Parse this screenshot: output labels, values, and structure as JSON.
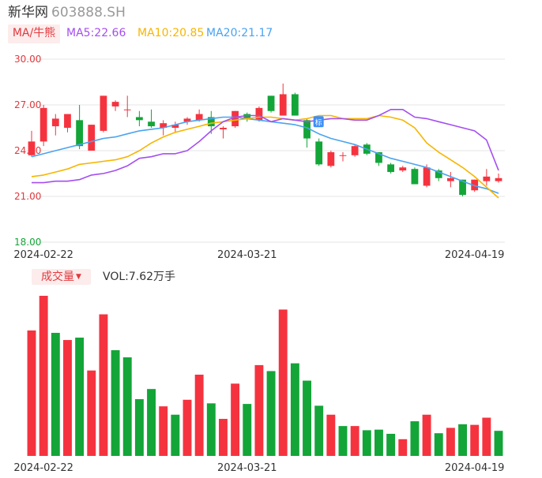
{
  "header": {
    "name": "新华网",
    "code": "603888.SH"
  },
  "ma_legend": {
    "toggle_label": "MA/牛熊",
    "ma5": "MA5:22.66",
    "ma10": "MA10:20.85",
    "ma20": "MA20:21.17"
  },
  "volume_legend": {
    "toggle_label": "成交量",
    "vol": "VOL:7.62万手"
  },
  "colors": {
    "up": "#f5333f",
    "down": "#13a538",
    "ma5": "#a44ef0",
    "ma10": "#f7b500",
    "ma20": "#4aa3f0",
    "grid": "#e6e6e6"
  },
  "chart_data": [
    {
      "type": "candlestick",
      "y_ticks": [
        "30.00",
        "27.00",
        "24.00",
        "21.00",
        "18.00"
      ],
      "ylim": [
        18.0,
        30.0
      ],
      "x_ticks": [
        {
          "label": "2024-02-22",
          "index": 1
        },
        {
          "label": "2024-03-21",
          "index": 18
        },
        {
          "label": "2024-04-19",
          "index": 37
        }
      ],
      "badge": "标",
      "candles": [
        {
          "o": 23.7,
          "h": 25.3,
          "l": 23.6,
          "c": 24.6
        },
        {
          "o": 24.6,
          "h": 27.0,
          "l": 24.3,
          "c": 26.8
        },
        {
          "o": 25.6,
          "h": 26.4,
          "l": 25.0,
          "c": 26.1
        },
        {
          "o": 25.5,
          "h": 26.4,
          "l": 25.2,
          "c": 26.4
        },
        {
          "o": 26.0,
          "h": 27.0,
          "l": 24.1,
          "c": 24.3
        },
        {
          "o": 24.0,
          "h": 25.7,
          "l": 24.0,
          "c": 25.7
        },
        {
          "o": 25.3,
          "h": 27.6,
          "l": 25.2,
          "c": 27.6
        },
        {
          "o": 26.9,
          "h": 27.3,
          "l": 26.6,
          "c": 27.2
        },
        {
          "o": 26.7,
          "h": 27.6,
          "l": 26.2,
          "c": 26.7
        },
        {
          "o": 26.2,
          "h": 26.6,
          "l": 25.6,
          "c": 26.0
        },
        {
          "o": 25.9,
          "h": 26.7,
          "l": 25.5,
          "c": 25.6
        },
        {
          "o": 25.5,
          "h": 26.0,
          "l": 25.0,
          "c": 25.8
        },
        {
          "o": 25.5,
          "h": 25.9,
          "l": 25.2,
          "c": 25.7
        },
        {
          "o": 25.9,
          "h": 26.2,
          "l": 25.7,
          "c": 26.1
        },
        {
          "o": 26.0,
          "h": 26.7,
          "l": 25.9,
          "c": 26.4
        },
        {
          "o": 26.2,
          "h": 26.6,
          "l": 25.1,
          "c": 25.6
        },
        {
          "o": 25.4,
          "h": 25.6,
          "l": 24.8,
          "c": 25.5
        },
        {
          "o": 25.6,
          "h": 26.6,
          "l": 25.5,
          "c": 26.6
        },
        {
          "o": 26.4,
          "h": 26.5,
          "l": 25.9,
          "c": 26.1
        },
        {
          "o": 26.0,
          "h": 26.9,
          "l": 25.9,
          "c": 26.8
        },
        {
          "o": 27.6,
          "h": 27.6,
          "l": 26.5,
          "c": 26.6
        },
        {
          "o": 26.3,
          "h": 28.4,
          "l": 26.3,
          "c": 27.7
        },
        {
          "o": 27.7,
          "h": 27.8,
          "l": 26.3,
          "c": 26.3
        },
        {
          "o": 26.0,
          "h": 26.1,
          "l": 24.2,
          "c": 24.8
        },
        {
          "o": 24.6,
          "h": 24.8,
          "l": 23.0,
          "c": 23.1
        },
        {
          "o": 23.0,
          "h": 24.0,
          "l": 22.9,
          "c": 23.9
        },
        {
          "o": 23.7,
          "h": 23.9,
          "l": 23.3,
          "c": 23.7
        },
        {
          "o": 23.7,
          "h": 24.4,
          "l": 23.6,
          "c": 24.3
        },
        {
          "o": 24.4,
          "h": 24.5,
          "l": 23.7,
          "c": 23.8
        },
        {
          "o": 23.9,
          "h": 23.9,
          "l": 23.0,
          "c": 23.2
        },
        {
          "o": 23.1,
          "h": 23.2,
          "l": 22.5,
          "c": 22.6
        },
        {
          "o": 22.7,
          "h": 23.0,
          "l": 22.6,
          "c": 22.9
        },
        {
          "o": 22.8,
          "h": 22.9,
          "l": 21.8,
          "c": 21.8
        },
        {
          "o": 21.7,
          "h": 23.1,
          "l": 21.6,
          "c": 22.9
        },
        {
          "o": 22.7,
          "h": 22.8,
          "l": 22.0,
          "c": 22.2
        },
        {
          "o": 22.0,
          "h": 22.6,
          "l": 21.6,
          "c": 22.2
        },
        {
          "o": 22.1,
          "h": 22.1,
          "l": 21.0,
          "c": 21.1
        },
        {
          "o": 21.4,
          "h": 22.1,
          "l": 21.3,
          "c": 22.1
        },
        {
          "o": 22.0,
          "h": 22.8,
          "l": 21.7,
          "c": 22.3
        },
        {
          "o": 22.0,
          "h": 22.5,
          "l": 21.9,
          "c": 22.2
        }
      ],
      "ma5": [
        21.9,
        21.9,
        22.0,
        22.0,
        22.1,
        22.4,
        22.5,
        22.7,
        23.0,
        23.5,
        23.6,
        23.8,
        23.8,
        24.0,
        24.6,
        25.3,
        25.9,
        26.2,
        26.3,
        26.3,
        25.9,
        26.1,
        26.0,
        25.9,
        26.0,
        26.1,
        26.1,
        26.0,
        26.0,
        26.3,
        26.7,
        26.7,
        26.2,
        26.1,
        25.9,
        25.7,
        25.5,
        25.3,
        24.7,
        22.7
      ],
      "ma10": [
        22.3,
        22.4,
        22.6,
        22.8,
        23.1,
        23.2,
        23.3,
        23.4,
        23.6,
        24.0,
        24.5,
        24.9,
        25.2,
        25.4,
        25.6,
        25.8,
        25.9,
        26.0,
        26.1,
        26.2,
        26.2,
        26.1,
        26.0,
        26.1,
        26.3,
        26.3,
        26.1,
        26.1,
        26.1,
        26.3,
        26.2,
        26.0,
        25.5,
        24.5,
        23.9,
        23.4,
        22.9,
        22.3,
        21.6,
        20.9
      ],
      "ma20": [
        23.6,
        23.8,
        24.0,
        24.2,
        24.4,
        24.6,
        24.8,
        24.9,
        25.1,
        25.3,
        25.4,
        25.5,
        25.7,
        25.9,
        26.0,
        26.1,
        26.2,
        26.2,
        26.1,
        26.0,
        25.9,
        25.8,
        25.7,
        25.5,
        25.1,
        24.8,
        24.6,
        24.4,
        24.1,
        23.8,
        23.5,
        23.3,
        23.1,
        22.9,
        22.6,
        22.3,
        22.0,
        21.7,
        21.5,
        21.2
      ]
    },
    {
      "type": "bar",
      "title": "成交量",
      "values": [
        21.0,
        26.8,
        20.6,
        19.4,
        19.8,
        14.3,
        23.7,
        17.7,
        16.5,
        9.5,
        11.2,
        8.3,
        6.9,
        9.4,
        13.6,
        8.8,
        6.2,
        12.1,
        8.7,
        15.2,
        14.2,
        24.5,
        15.5,
        12.6,
        8.4,
        6.9,
        5.0,
        5.0,
        4.3,
        4.4,
        3.7,
        2.8,
        5.8,
        6.9,
        3.8,
        4.7,
        5.3,
        5.2,
        6.4,
        4.2
      ],
      "up": [
        true,
        true,
        false,
        true,
        false,
        true,
        true,
        false,
        false,
        false,
        false,
        true,
        false,
        true,
        true,
        false,
        true,
        true,
        false,
        true,
        false,
        true,
        false,
        false,
        false,
        true,
        false,
        true,
        false,
        false,
        false,
        true,
        false,
        true,
        false,
        true,
        false,
        true,
        true,
        false
      ]
    }
  ]
}
